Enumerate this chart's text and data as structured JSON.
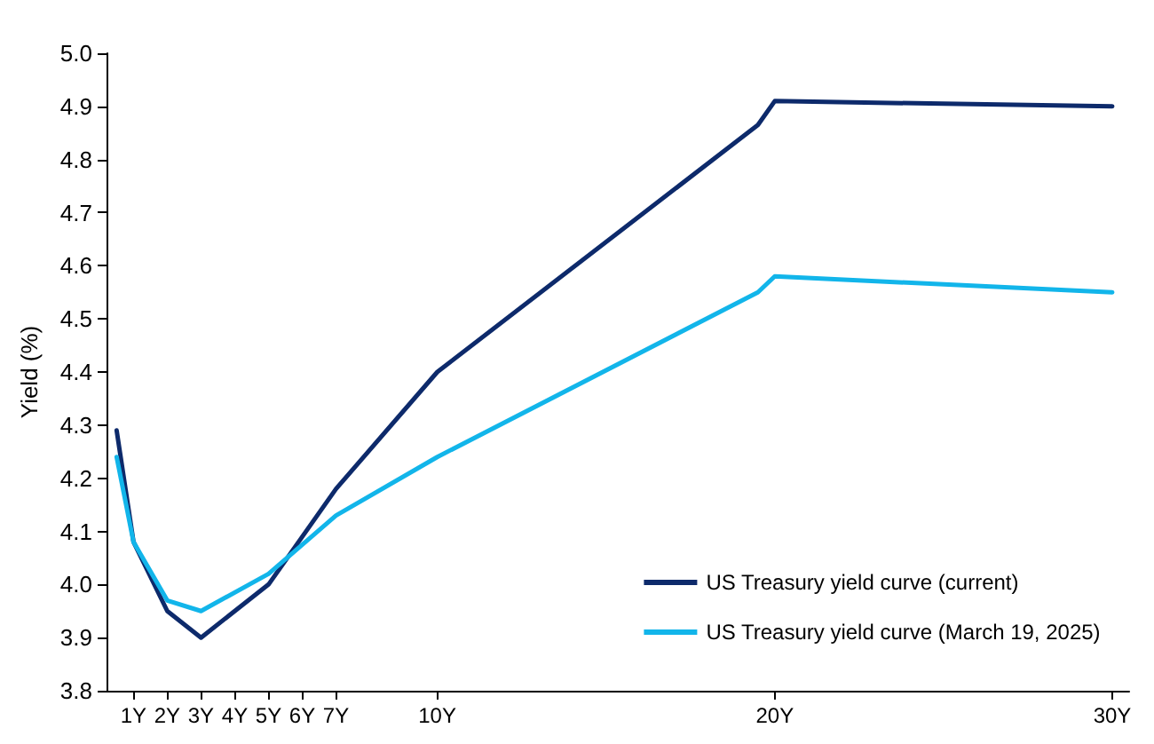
{
  "chart_data": {
    "type": "line",
    "ylabel": "Yield (%)",
    "x": [
      0.5,
      1,
      2,
      3,
      5,
      7,
      10,
      19.5,
      20,
      30
    ],
    "series": [
      {
        "name": "US Treasury yield curve (current)",
        "color": "#0d2a6b",
        "values": [
          4.29,
          4.08,
          3.95,
          3.9,
          4.0,
          4.18,
          4.4,
          4.865,
          4.91,
          4.9
        ]
      },
      {
        "name": "US Treasury yield curve (March 19, 2025)",
        "color": "#12b5ea",
        "values": [
          4.24,
          4.08,
          3.97,
          3.95,
          4.02,
          4.13,
          4.24,
          4.55,
          4.58,
          4.55
        ]
      }
    ],
    "xlim": [
      0.2,
      30.5
    ],
    "xticks": [
      {
        "value": 1,
        "label": "1Y"
      },
      {
        "value": 2,
        "label": "2Y"
      },
      {
        "value": 3,
        "label": "3Y"
      },
      {
        "value": 4,
        "label": "4Y"
      },
      {
        "value": 5,
        "label": "5Y"
      },
      {
        "value": 6,
        "label": "6Y"
      },
      {
        "value": 7,
        "label": "7Y"
      },
      {
        "value": 10,
        "label": "10Y"
      },
      {
        "value": 20,
        "label": "20Y"
      },
      {
        "value": 30,
        "label": "30Y"
      }
    ],
    "ylim": [
      3.8,
      5.0
    ],
    "yticks": [
      3.8,
      3.9,
      {
        "value": 4,
        "label": "4.0"
      },
      4.1,
      4.2,
      4.3,
      4.4,
      4.5,
      4.6,
      4.7,
      4.8,
      4.9,
      {
        "value": 5,
        "label": "5.0"
      }
    ],
    "grid": false,
    "legend": "bottom right",
    "marker": "none",
    "line_style": "solid"
  }
}
